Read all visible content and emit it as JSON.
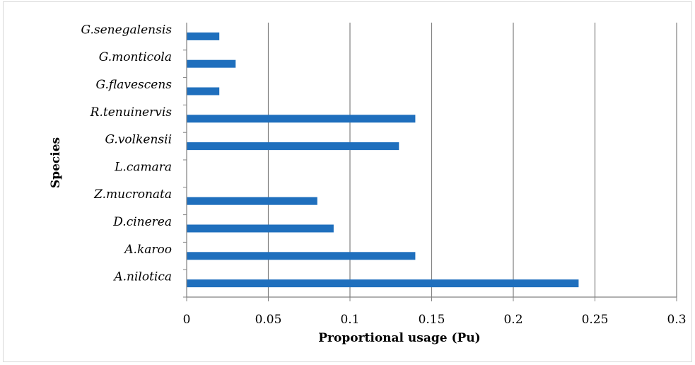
{
  "chart_data": {
    "type": "bar",
    "orientation": "horizontal",
    "categories": [
      "A.nilotica",
      "A.karoo",
      "D.cinerea",
      "Z.mucronata",
      "L.camara",
      "G.volkensii",
      "R.tenuinervis",
      "G.flavescens",
      "G.monticola",
      "G.senegalensis"
    ],
    "values": [
      0.24,
      0.14,
      0.09,
      0.08,
      0,
      0.13,
      0.14,
      0.02,
      0.03,
      0.02
    ],
    "xlabel": "Proportional usage (Pu)",
    "ylabel": "Species",
    "xlim": [
      0,
      0.3
    ],
    "xticks": [
      "0",
      "0.05",
      "0.1",
      "0.15",
      "0.2",
      "0.25",
      "0.3"
    ],
    "grid": "vertical",
    "colors": {
      "bar": "#1f6fbd",
      "grid": "#808080",
      "axis": "#808080"
    }
  }
}
